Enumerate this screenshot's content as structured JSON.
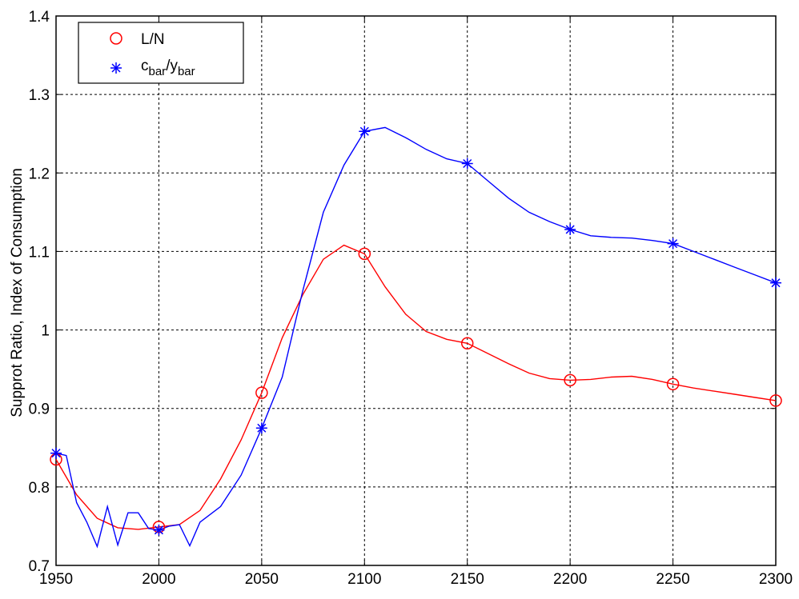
{
  "chart_data": {
    "type": "line",
    "xlim": [
      1950,
      2300
    ],
    "ylim": [
      0.7,
      1.4
    ],
    "xticks": [
      1950,
      2000,
      2050,
      2100,
      2150,
      2200,
      2250,
      2300
    ],
    "yticks": [
      0.7,
      0.8,
      0.9,
      1.0,
      1.1,
      1.2,
      1.3,
      1.4
    ],
    "xtick_labels": [
      "1950",
      "2000",
      "2050",
      "2100",
      "2150",
      "2200",
      "2250",
      "2300"
    ],
    "ytick_labels": [
      "0.7",
      "0.8",
      "0.9",
      "1",
      "1.1",
      "1.2",
      "1.3",
      "1.4"
    ],
    "ylabel": "Supprot Ratio, Index of Consumption",
    "xlabel": "",
    "grid": true,
    "legend_position": "top-left",
    "series": [
      {
        "name": "L/N",
        "marker": "circle",
        "color": "#ff0000",
        "line": [
          [
            1950,
            0.835
          ],
          [
            1960,
            0.79
          ],
          [
            1970,
            0.76
          ],
          [
            1980,
            0.748
          ],
          [
            1990,
            0.746
          ],
          [
            2000,
            0.749
          ],
          [
            2010,
            0.752
          ],
          [
            2020,
            0.77
          ],
          [
            2030,
            0.81
          ],
          [
            2040,
            0.86
          ],
          [
            2050,
            0.92
          ],
          [
            2060,
            0.99
          ],
          [
            2070,
            1.045
          ],
          [
            2080,
            1.09
          ],
          [
            2090,
            1.108
          ],
          [
            2100,
            1.097
          ],
          [
            2110,
            1.055
          ],
          [
            2120,
            1.02
          ],
          [
            2130,
            0.998
          ],
          [
            2140,
            0.988
          ],
          [
            2150,
            0.983
          ],
          [
            2160,
            0.97
          ],
          [
            2170,
            0.957
          ],
          [
            2180,
            0.945
          ],
          [
            2190,
            0.938
          ],
          [
            2200,
            0.936
          ],
          [
            2210,
            0.937
          ],
          [
            2220,
            0.94
          ],
          [
            2230,
            0.941
          ],
          [
            2240,
            0.937
          ],
          [
            2250,
            0.931
          ],
          [
            2260,
            0.926
          ],
          [
            2270,
            0.922
          ],
          [
            2280,
            0.918
          ],
          [
            2290,
            0.914
          ],
          [
            2300,
            0.91
          ]
        ],
        "markers": [
          [
            1950,
            0.835
          ],
          [
            2000,
            0.749
          ],
          [
            2050,
            0.92
          ],
          [
            2100,
            1.097
          ],
          [
            2150,
            0.983
          ],
          [
            2200,
            0.936
          ],
          [
            2250,
            0.931
          ],
          [
            2300,
            0.91
          ]
        ]
      },
      {
        "name": "c_bar/y_bar",
        "marker": "star",
        "color": "#0000ff",
        "line": [
          [
            1950,
            0.843
          ],
          [
            1955,
            0.84
          ],
          [
            1960,
            0.78
          ],
          [
            1965,
            0.755
          ],
          [
            1970,
            0.724
          ],
          [
            1975,
            0.775
          ],
          [
            1980,
            0.726
          ],
          [
            1985,
            0.767
          ],
          [
            1990,
            0.767
          ],
          [
            1995,
            0.747
          ],
          [
            2000,
            0.745
          ],
          [
            2005,
            0.75
          ],
          [
            2010,
            0.752
          ],
          [
            2015,
            0.725
          ],
          [
            2020,
            0.755
          ],
          [
            2030,
            0.775
          ],
          [
            2040,
            0.815
          ],
          [
            2050,
            0.875
          ],
          [
            2060,
            0.94
          ],
          [
            2070,
            1.05
          ],
          [
            2080,
            1.15
          ],
          [
            2090,
            1.21
          ],
          [
            2100,
            1.253
          ],
          [
            2110,
            1.258
          ],
          [
            2120,
            1.245
          ],
          [
            2130,
            1.23
          ],
          [
            2140,
            1.218
          ],
          [
            2150,
            1.212
          ],
          [
            2160,
            1.19
          ],
          [
            2170,
            1.168
          ],
          [
            2180,
            1.15
          ],
          [
            2190,
            1.138
          ],
          [
            2200,
            1.128
          ],
          [
            2210,
            1.12
          ],
          [
            2220,
            1.118
          ],
          [
            2230,
            1.117
          ],
          [
            2240,
            1.114
          ],
          [
            2250,
            1.11
          ],
          [
            2260,
            1.1
          ],
          [
            2270,
            1.09
          ],
          [
            2280,
            1.08
          ],
          [
            2290,
            1.07
          ],
          [
            2300,
            1.06
          ]
        ],
        "markers": [
          [
            1950,
            0.843
          ],
          [
            2000,
            0.745
          ],
          [
            2050,
            0.875
          ],
          [
            2100,
            1.253
          ],
          [
            2150,
            1.212
          ],
          [
            2200,
            1.128
          ],
          [
            2250,
            1.11
          ],
          [
            2300,
            1.06
          ]
        ]
      }
    ]
  },
  "legend": {
    "item1": "L/N",
    "item2_main1": "c",
    "item2_sub1": "bar",
    "item2_main2": "/y",
    "item2_sub2": "bar"
  }
}
